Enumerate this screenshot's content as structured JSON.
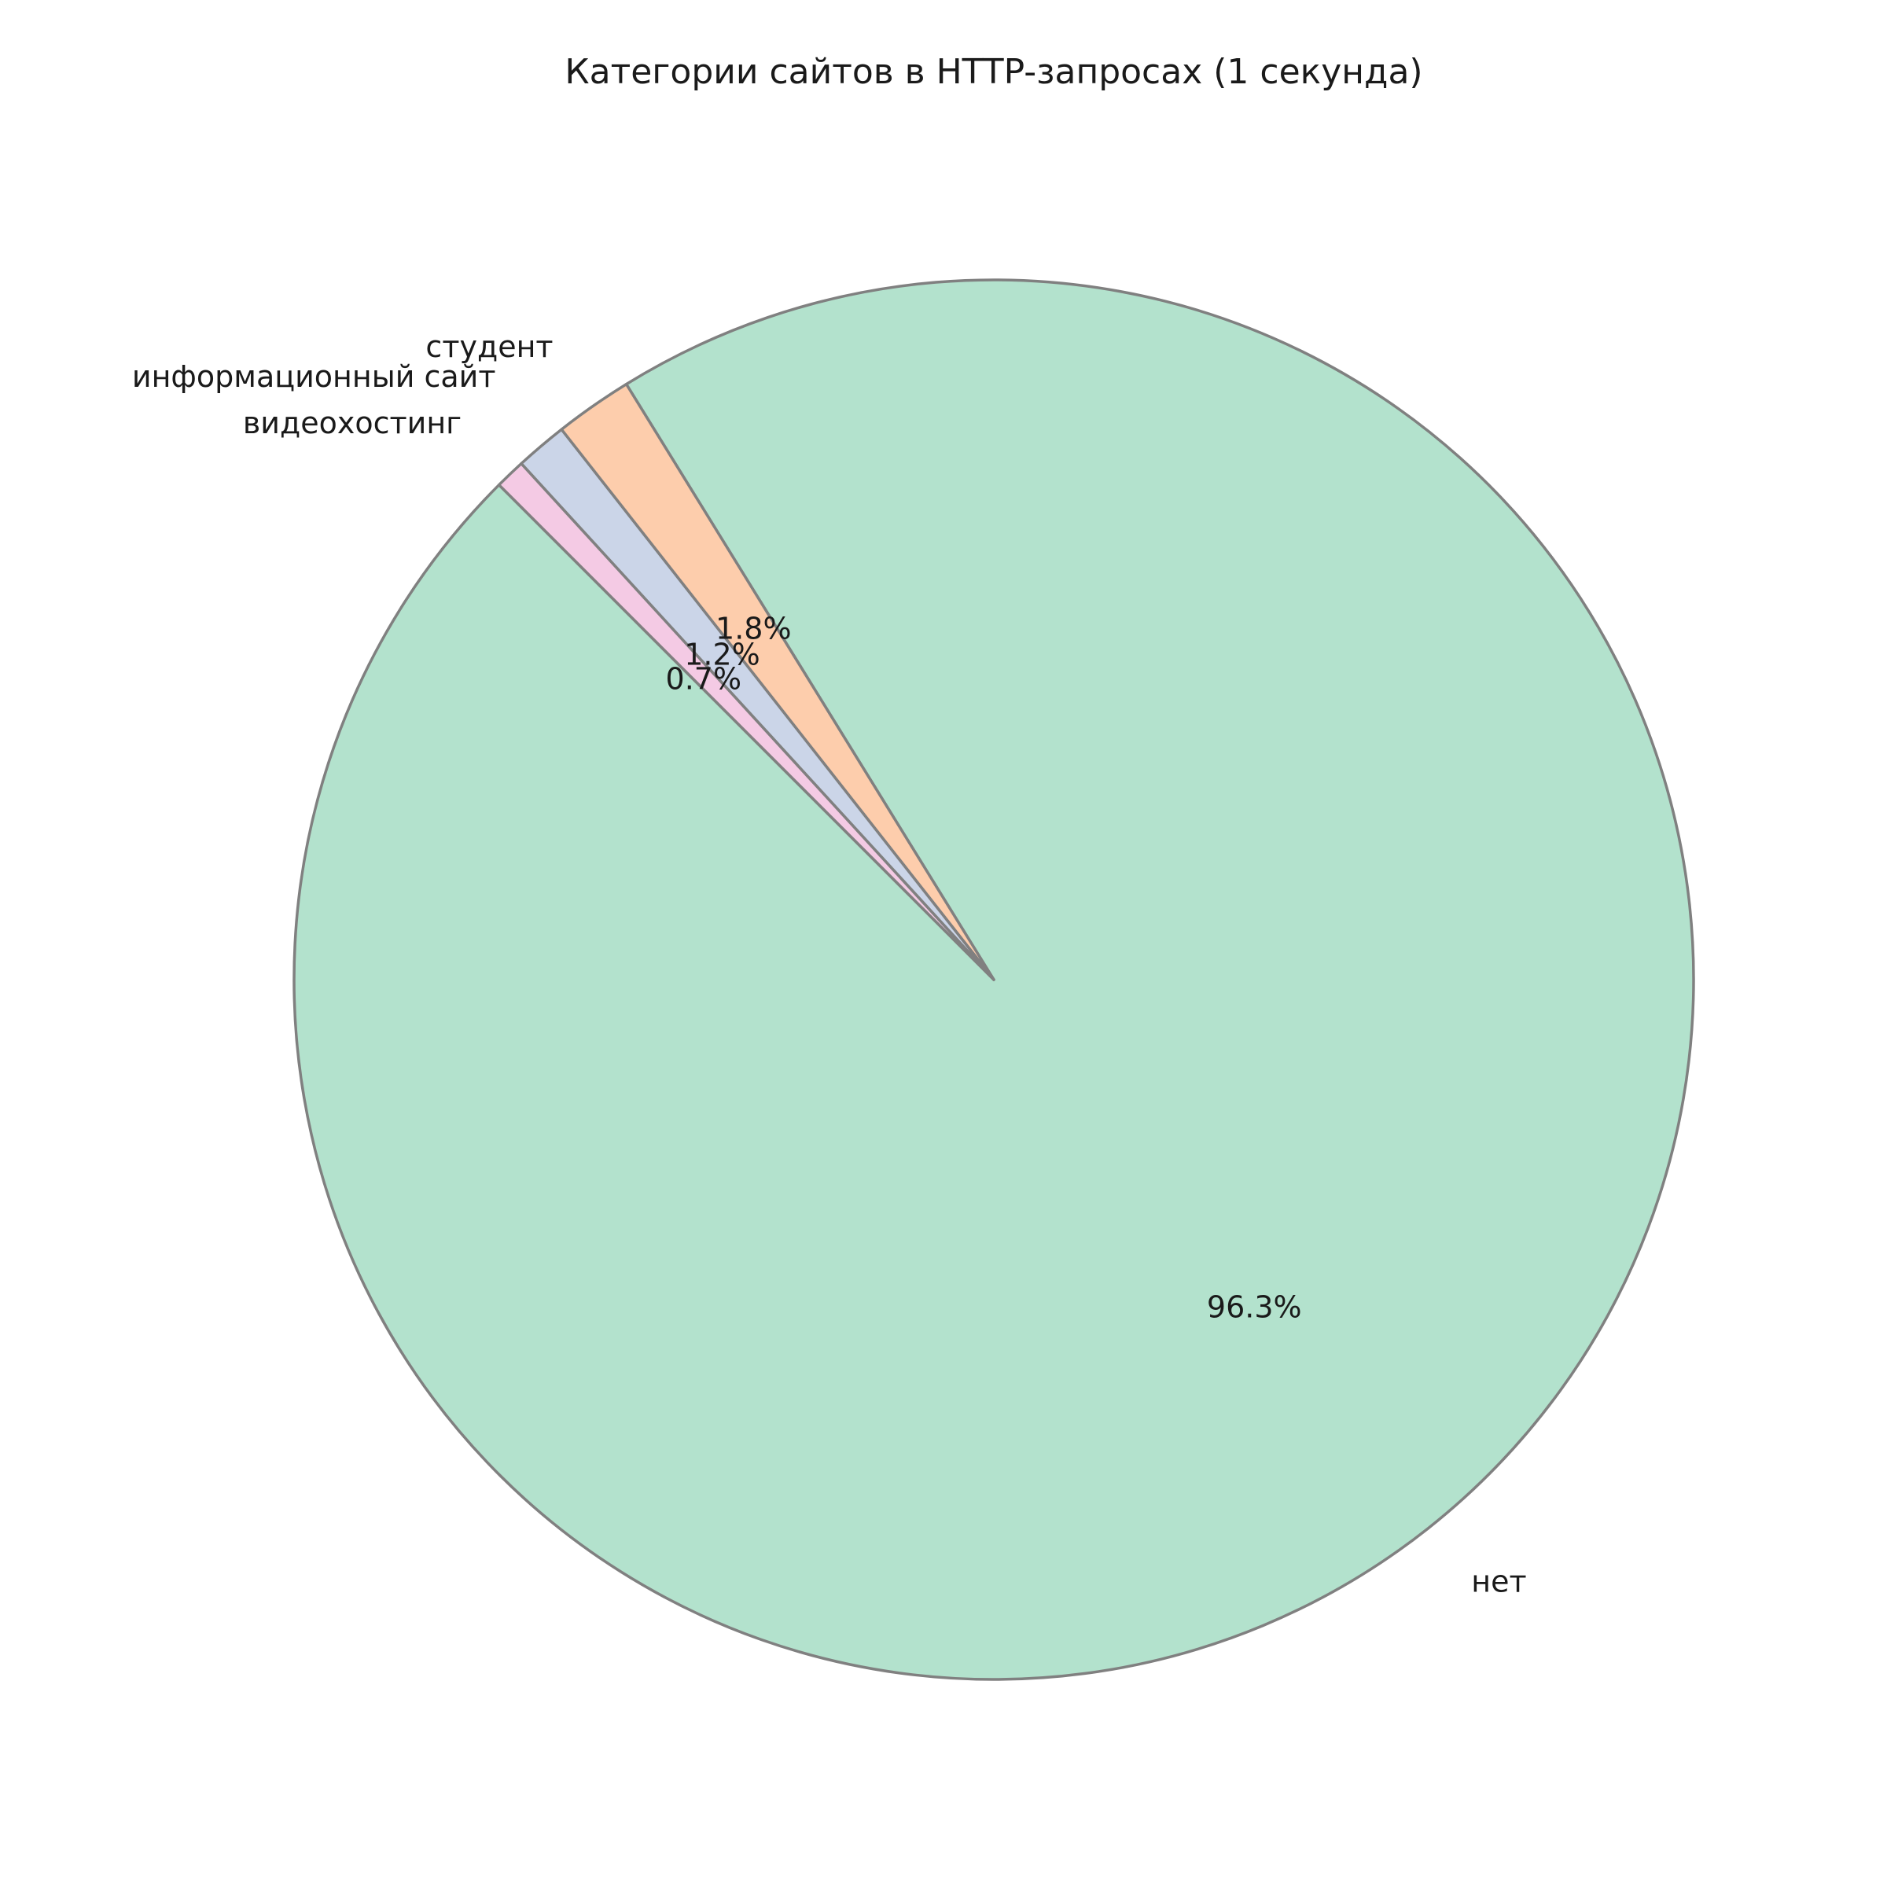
{
  "chart_data": {
    "type": "pie",
    "title": "Категории сайтов в HTTP-запросах (1 секунда)",
    "categories": [
      "нет",
      "студент",
      "информационный сайт",
      "видеохостинг"
    ],
    "values": [
      96.3,
      1.8,
      1.2,
      0.7
    ],
    "value_labels": [
      "96.3%",
      "1.8%",
      "1.2%",
      "0.7%"
    ],
    "colors": [
      "#b3e2cd",
      "#fdcdac",
      "#cbd5e8",
      "#f4cae4"
    ],
    "edge_color": "#808080",
    "start_angle_deg": 135,
    "direction": "counterclockwise",
    "legend": "none"
  }
}
